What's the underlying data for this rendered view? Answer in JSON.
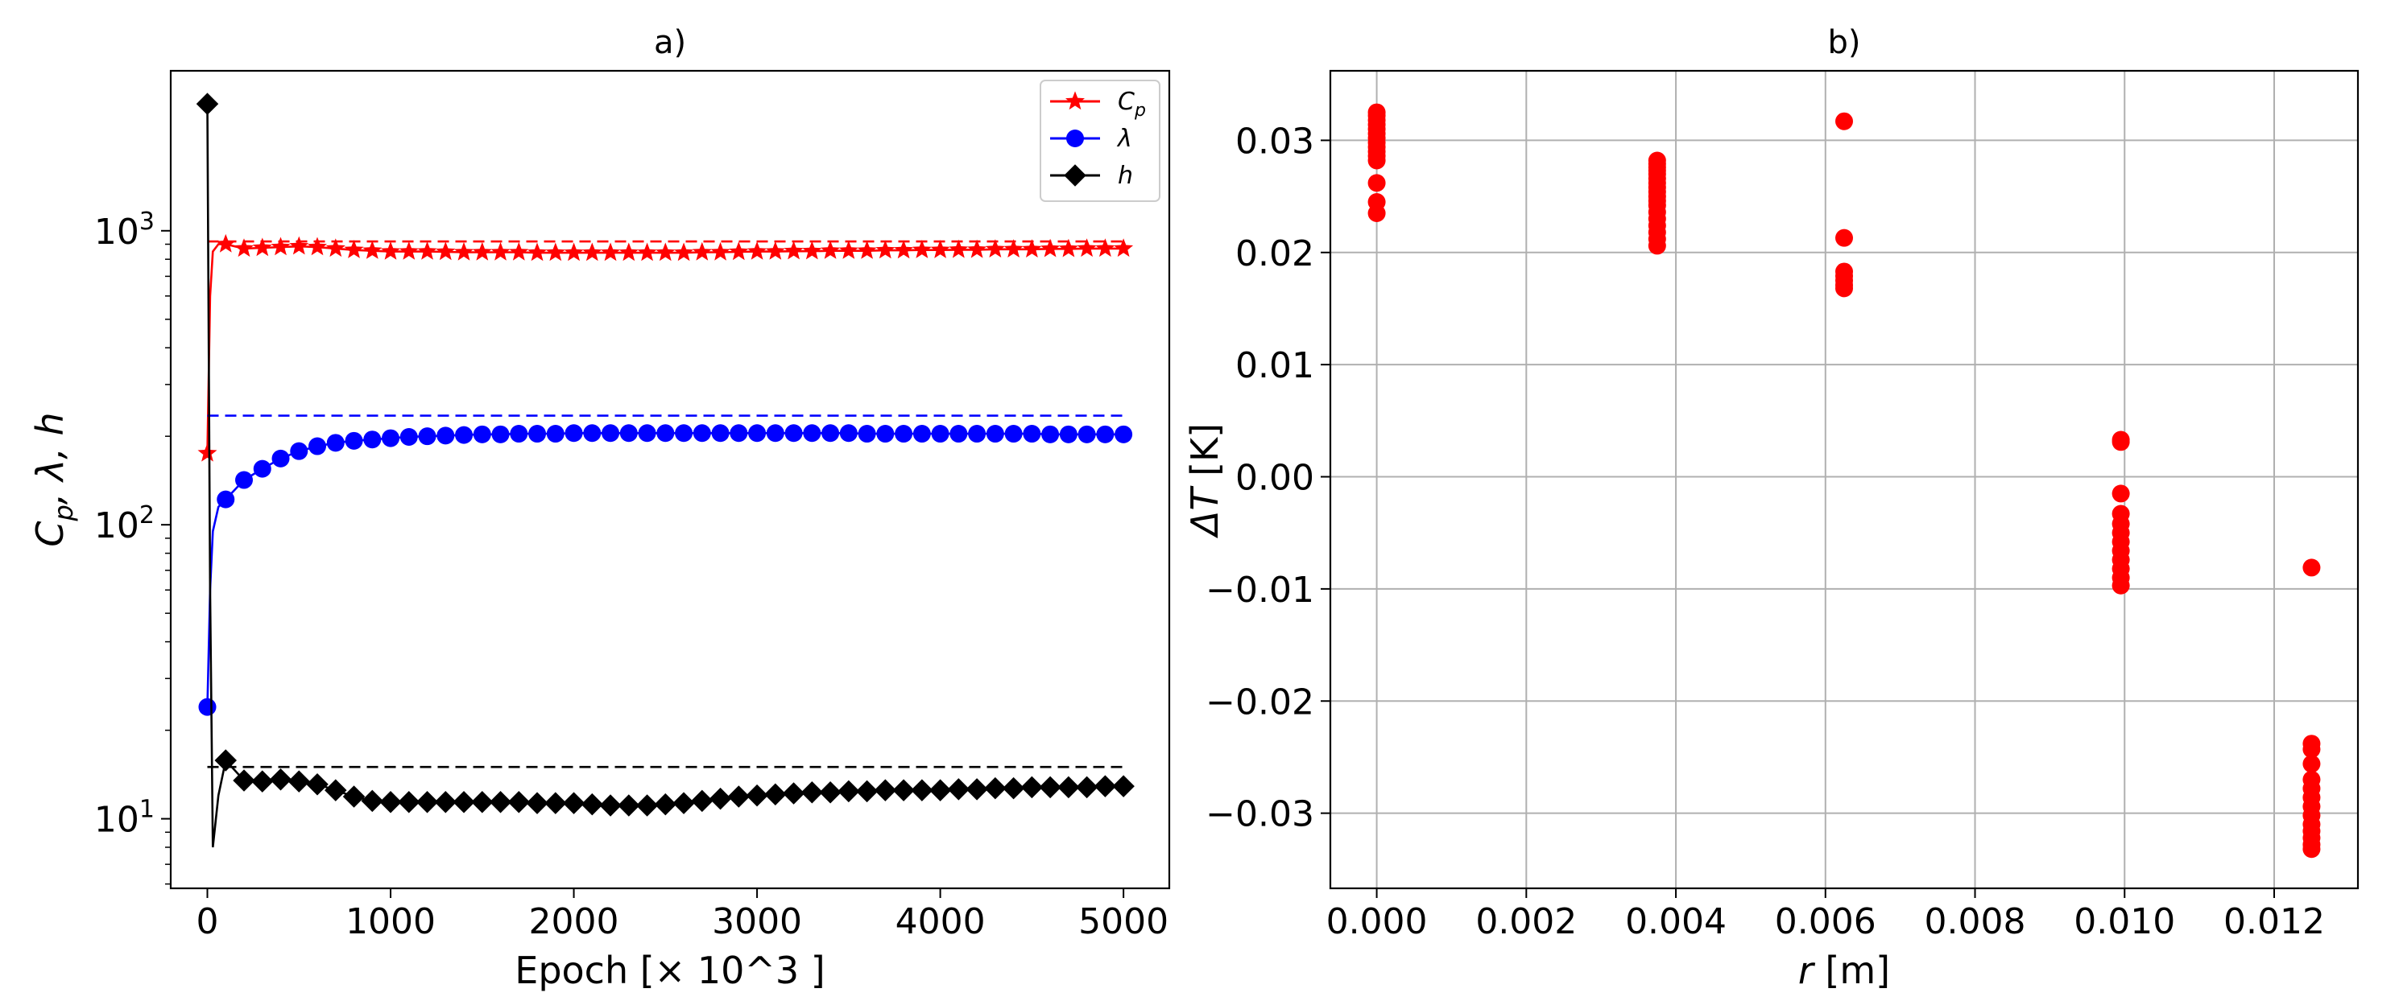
{
  "chart_data": [
    {
      "panel": "a",
      "type": "line",
      "title": "a)",
      "xlabel": "Epoch [× 10^3 ]",
      "ylabel": "C_p, λ, h",
      "ylabel_parts": [
        "C",
        "p",
        ", λ, h"
      ],
      "yscale": "log",
      "xlim": [
        -200,
        5250
      ],
      "ylim": [
        5.8,
        3500
      ],
      "xticks": [
        0,
        1000,
        2000,
        3000,
        4000,
        5000
      ],
      "xtick_labels": [
        "0",
        "1000",
        "2000",
        "3000",
        "4000",
        "5000"
      ],
      "yticks": [
        10,
        100,
        1000
      ],
      "ytick_base": "10",
      "ytick_exponents": [
        "1",
        "2",
        "3"
      ],
      "grid": false,
      "legend_position": "top-right",
      "series": [
        {
          "name": "C_p",
          "legend_main": "C",
          "legend_sub": "p",
          "color": "#ff0000",
          "marker": "star",
          "x": [
            0,
            100,
            200,
            300,
            400,
            500,
            600,
            700,
            800,
            900,
            1000,
            1100,
            1200,
            1300,
            1400,
            1500,
            1600,
            1700,
            1800,
            1900,
            2000,
            2100,
            2200,
            2300,
            2400,
            2500,
            2600,
            2700,
            2800,
            2900,
            3000,
            3100,
            3200,
            3300,
            3400,
            3500,
            3600,
            3700,
            3800,
            3900,
            4000,
            4100,
            4200,
            4300,
            4400,
            4500,
            4600,
            4700,
            4800,
            4900,
            5000
          ],
          "values": [
            175,
            900,
            870,
            875,
            880,
            885,
            880,
            870,
            860,
            855,
            850,
            850,
            850,
            848,
            845,
            845,
            845,
            845,
            842,
            842,
            842,
            842,
            842,
            842,
            842,
            842,
            842,
            845,
            845,
            848,
            850,
            850,
            852,
            852,
            855,
            855,
            855,
            858,
            858,
            860,
            860,
            862,
            862,
            865,
            865,
            865,
            868,
            868,
            870,
            870,
            870
          ],
          "reference": 920
        },
        {
          "name": "λ",
          "legend_main": "λ",
          "legend_sub": "",
          "color": "#0000ff",
          "marker": "circle",
          "x": [
            0,
            100,
            200,
            300,
            400,
            500,
            600,
            700,
            800,
            900,
            1000,
            1100,
            1200,
            1300,
            1400,
            1500,
            1600,
            1700,
            1800,
            1900,
            2000,
            2100,
            2200,
            2300,
            2400,
            2500,
            2600,
            2700,
            2800,
            2900,
            3000,
            3100,
            3200,
            3300,
            3400,
            3500,
            3600,
            3700,
            3800,
            3900,
            4000,
            4100,
            4200,
            4300,
            4400,
            4500,
            4600,
            4700,
            4800,
            4900,
            5000
          ],
          "values": [
            24,
            122,
            142,
            155,
            168,
            178,
            185,
            190,
            193,
            195,
            197,
            199,
            200,
            201,
            202,
            203,
            203,
            204,
            204,
            204,
            205,
            205,
            205,
            205,
            205,
            205,
            205,
            205,
            205,
            205,
            205,
            205,
            205,
            205,
            205,
            205,
            204,
            204,
            204,
            204,
            204,
            204,
            204,
            204,
            204,
            204,
            203,
            203,
            203,
            203,
            203
          ],
          "reference": 235
        },
        {
          "name": "h",
          "legend_main": "h",
          "legend_sub": "",
          "color": "#000000",
          "marker": "diamond",
          "x": [
            0,
            100,
            200,
            300,
            400,
            500,
            600,
            700,
            800,
            900,
            1000,
            1100,
            1200,
            1300,
            1400,
            1500,
            1600,
            1700,
            1800,
            1900,
            2000,
            2100,
            2200,
            2300,
            2400,
            2500,
            2600,
            2700,
            2800,
            2900,
            3000,
            3100,
            3200,
            3300,
            3400,
            3500,
            3600,
            3700,
            3800,
            3900,
            4000,
            4100,
            4200,
            4300,
            4400,
            4500,
            4600,
            4700,
            4800,
            4900,
            5000
          ],
          "values": [
            2700,
            15.8,
            13.5,
            13.4,
            13.6,
            13.4,
            13.1,
            12.5,
            11.9,
            11.5,
            11.4,
            11.4,
            11.4,
            11.4,
            11.4,
            11.4,
            11.4,
            11.4,
            11.3,
            11.3,
            11.3,
            11.2,
            11.1,
            11.1,
            11.1,
            11.2,
            11.3,
            11.5,
            11.7,
            11.9,
            12.0,
            12.1,
            12.2,
            12.3,
            12.3,
            12.4,
            12.4,
            12.5,
            12.5,
            12.5,
            12.5,
            12.6,
            12.6,
            12.7,
            12.7,
            12.8,
            12.8,
            12.8,
            12.8,
            12.9,
            12.9
          ],
          "reference": 15
        }
      ],
      "transient": {
        "x": [
          0,
          15,
          30,
          60,
          100
        ],
        "values": {
          "C_p": [
            175,
            600,
            850,
            900,
            900
          ],
          "λ": [
            24,
            60,
            95,
            115,
            122
          ],
          "h": [
            2700,
            60,
            8,
            12,
            15.8
          ]
        }
      }
    },
    {
      "panel": "b",
      "type": "scatter",
      "title": "b)",
      "xlabel_italic": "r",
      "xlabel_rest": " [m]",
      "ylabel_prefix": "Δ",
      "ylabel_italic": "T",
      "ylabel_rest": " [K]",
      "xlim": [
        -0.00062,
        0.01312
      ],
      "ylim": [
        -0.0367,
        0.0362
      ],
      "xticks": [
        0.0,
        0.002,
        0.004,
        0.006,
        0.008,
        0.01,
        0.012
      ],
      "xtick_labels": [
        "0.000",
        "0.002",
        "0.004",
        "0.006",
        "0.008",
        "0.010",
        "0.012"
      ],
      "yticks": [
        -0.03,
        -0.02,
        -0.01,
        0.0,
        0.01,
        0.02,
        0.03
      ],
      "ytick_labels": [
        "−0.03",
        "−0.02",
        "−0.01",
        "0.00",
        "0.01",
        "0.02",
        "0.03"
      ],
      "grid": true,
      "color": "#ff0000",
      "groups": [
        {
          "x": 0.0,
          "values": [
            0.0325,
            0.0322,
            0.0318,
            0.0314,
            0.031,
            0.0306,
            0.0302,
            0.0298,
            0.0294,
            0.029,
            0.0286,
            0.0282,
            0.0262,
            0.0245,
            0.0235
          ]
        },
        {
          "x": 0.00375,
          "values": [
            0.0282,
            0.0279,
            0.0276,
            0.0273,
            0.027,
            0.0266,
            0.0262,
            0.0258,
            0.0254,
            0.025,
            0.0246,
            0.0242,
            0.0236,
            0.023,
            0.0224,
            0.0218,
            0.0212,
            0.0206
          ]
        },
        {
          "x": 0.00625,
          "values": [
            0.0317,
            0.0213,
            0.0183,
            0.0179,
            0.0175,
            0.0171,
            0.0168
          ]
        },
        {
          "x": 0.00995,
          "values": [
            0.0033,
            0.0031,
            -0.0015,
            -0.0033,
            -0.0042,
            -0.005,
            -0.0058,
            -0.0066,
            -0.0074,
            -0.0082,
            -0.009,
            -0.0097
          ]
        },
        {
          "x": 0.0125,
          "values": [
            -0.0081,
            -0.0238,
            -0.0243,
            -0.0256,
            -0.027,
            -0.0278,
            -0.0286,
            -0.0294,
            -0.0302,
            -0.031,
            -0.0316,
            -0.0322,
            -0.0328,
            -0.0332
          ]
        }
      ]
    }
  ]
}
